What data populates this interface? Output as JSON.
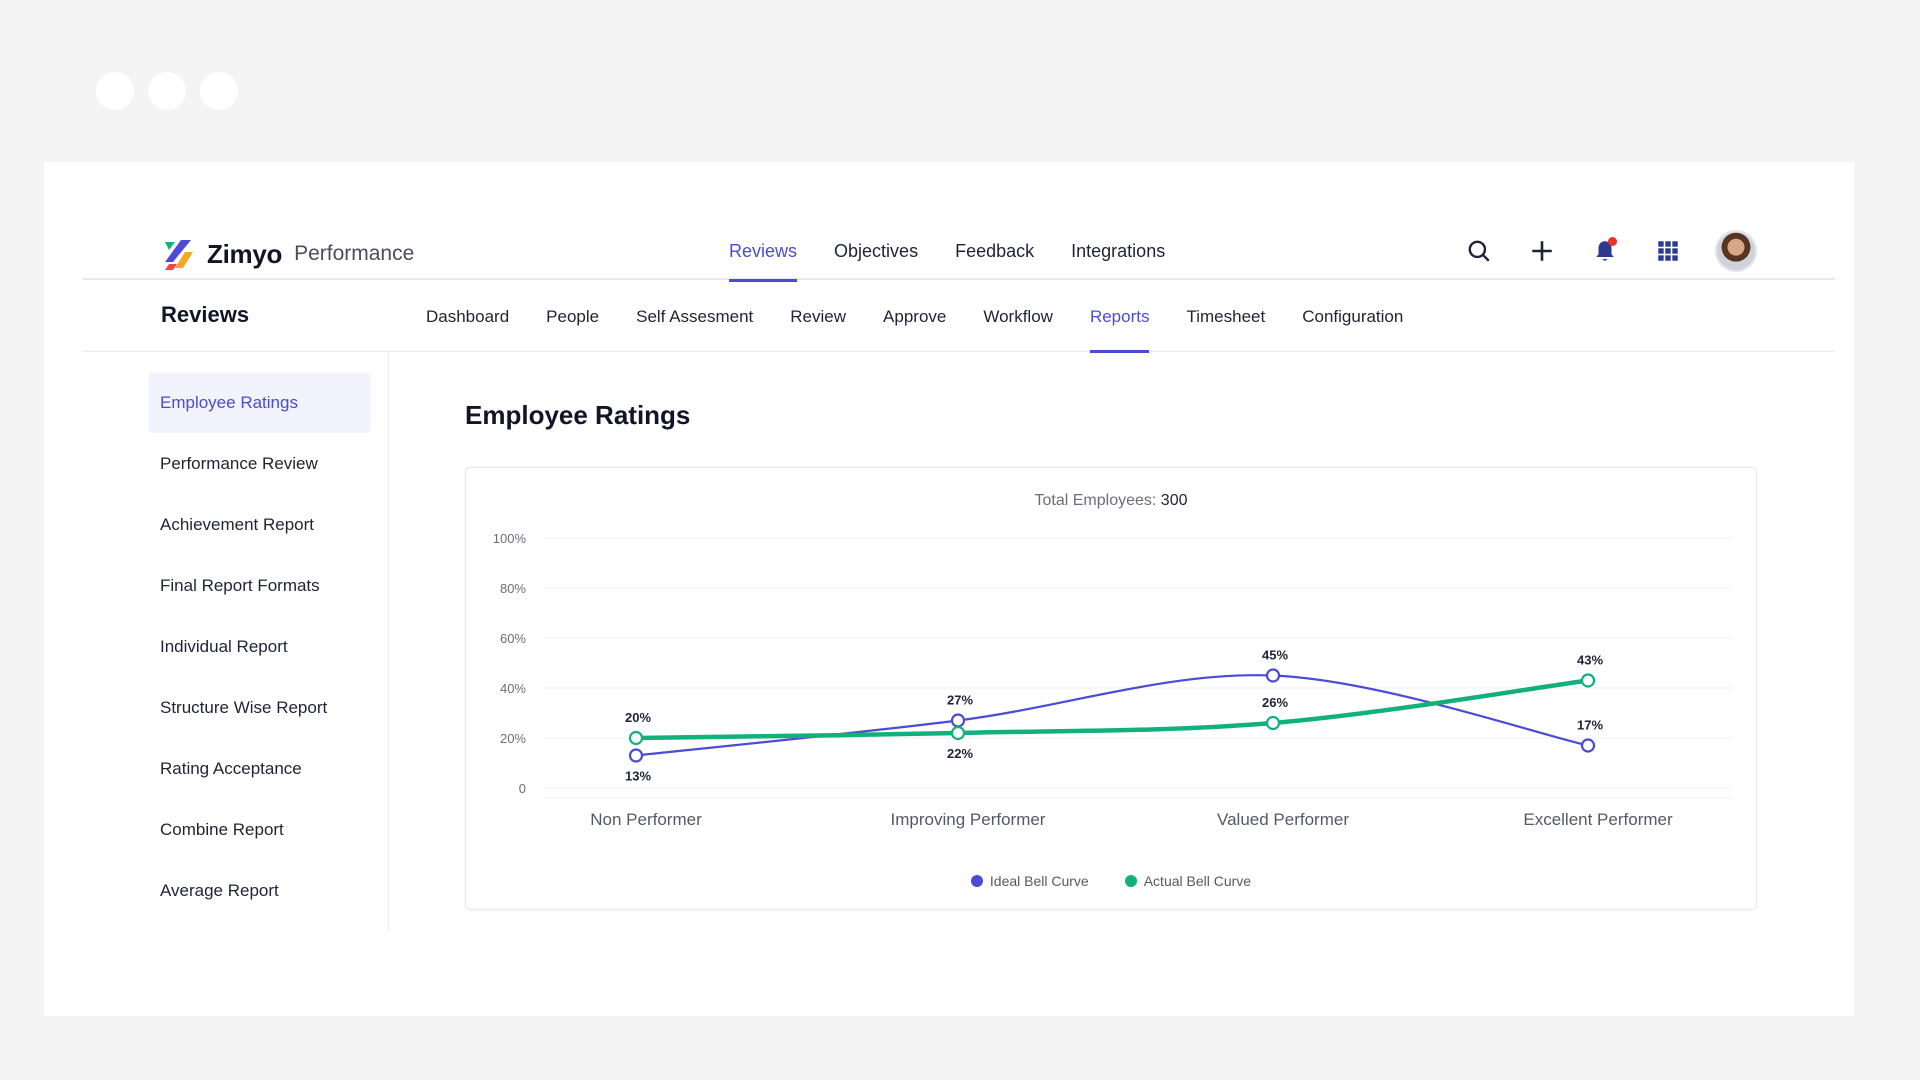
{
  "brand": {
    "name": "Zimyo",
    "product": "Performance"
  },
  "top_nav": [
    {
      "label": "Reviews",
      "active": true
    },
    {
      "label": "Objectives",
      "active": false
    },
    {
      "label": "Feedback",
      "active": false
    },
    {
      "label": "Integrations",
      "active": false
    }
  ],
  "top_icons": [
    "search-icon",
    "plus-icon",
    "bell-icon",
    "apps-grid-icon",
    "avatar"
  ],
  "section_title": "Reviews",
  "sub_nav": [
    {
      "label": "Dashboard",
      "active": false
    },
    {
      "label": "People",
      "active": false
    },
    {
      "label": "Self Assesment",
      "active": false
    },
    {
      "label": "Review",
      "active": false
    },
    {
      "label": "Approve",
      "active": false
    },
    {
      "label": "Workflow",
      "active": false
    },
    {
      "label": "Reports",
      "active": true
    },
    {
      "label": "Timesheet",
      "active": false
    },
    {
      "label": "Configuration",
      "active": false
    }
  ],
  "sidebar": [
    {
      "label": "Employee Ratings",
      "active": true
    },
    {
      "label": "Performance Review",
      "active": false
    },
    {
      "label": "Achievement Report",
      "active": false
    },
    {
      "label": "Final Report Formats",
      "active": false
    },
    {
      "label": "Individual Report",
      "active": false
    },
    {
      "label": "Structure Wise Report",
      "active": false
    },
    {
      "label": "Rating Acceptance",
      "active": false
    },
    {
      "label": "Combine Report",
      "active": false
    },
    {
      "label": "Average Report",
      "active": false
    }
  ],
  "main": {
    "title": "Employee Ratings",
    "total_label": "Total Employees:",
    "total_value": "300"
  },
  "colors": {
    "accent": "#4b4bd6",
    "ideal": "#4b4bd6",
    "actual": "#12b07a",
    "notify": "#ef2f2f"
  },
  "chart_data": {
    "type": "line",
    "categories": [
      "Non Performer",
      "Improving Performer",
      "Valued Performer",
      "Excellent Performer"
    ],
    "y_ticks": [
      "0",
      "20%",
      "40%",
      "60%",
      "80%",
      "100%"
    ],
    "ylim": [
      0,
      100
    ],
    "grid": true,
    "legend_placement": "bottom",
    "series": [
      {
        "name": "Ideal Bell Curve",
        "values": [
          13,
          27,
          45,
          17
        ],
        "labels": [
          "13%",
          "27%",
          "45%",
          "17%"
        ],
        "color": "#4b4bd6"
      },
      {
        "name": "Actual Bell Curve",
        "values": [
          20,
          22,
          26,
          43
        ],
        "labels": [
          "20%",
          "22%",
          "26%",
          "43%"
        ],
        "color": "#12b07a"
      }
    ]
  }
}
